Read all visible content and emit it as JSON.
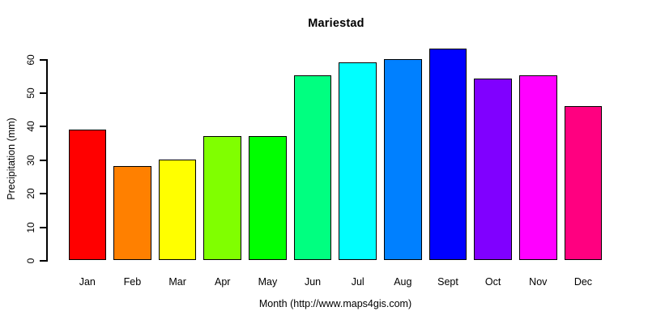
{
  "chart_data": {
    "type": "bar",
    "title": "Mariestad",
    "xlabel": "Month (http://www.maps4gis.com)",
    "ylabel": "Precipitation (mm)",
    "categories": [
      "Jan",
      "Feb",
      "Mar",
      "Apr",
      "May",
      "Jun",
      "Jul",
      "Aug",
      "Sept",
      "Oct",
      "Nov",
      "Dec"
    ],
    "values": [
      39,
      28,
      30,
      37,
      37,
      55,
      59,
      60,
      63,
      54,
      55,
      46
    ],
    "bar_colors": [
      "#FF0000",
      "#FF8000",
      "#FFFF00",
      "#80FF00",
      "#00FF00",
      "#00FF80",
      "#00FFFF",
      "#0080FF",
      "#0000FF",
      "#8000FF",
      "#FF00FF",
      "#FF0080"
    ],
    "bar_border_color": "#000000",
    "axis_color": "#000000",
    "background_color": "#FFFFFF",
    "yticks": [
      0,
      10,
      20,
      30,
      40,
      50,
      60
    ],
    "ylim": [
      0,
      65
    ],
    "grid": false,
    "legend": false
  }
}
